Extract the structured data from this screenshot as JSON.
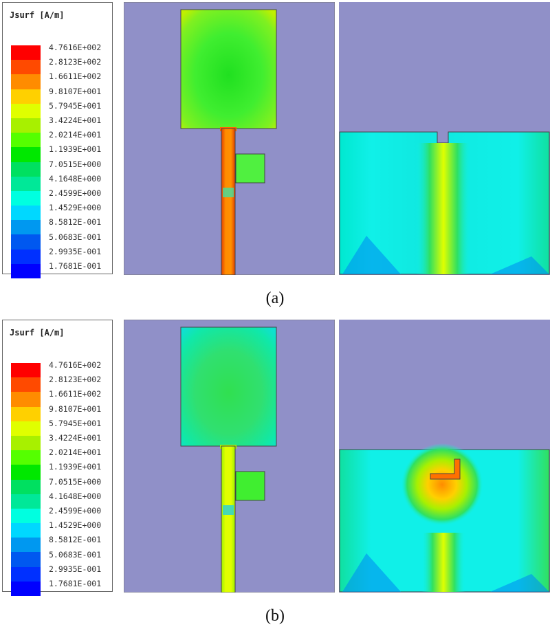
{
  "legend": {
    "title": "Jsurf [A/m]",
    "values": [
      "4.7616E+002",
      "2.8123E+002",
      "1.6611E+002",
      "9.8107E+001",
      "5.7945E+001",
      "3.4224E+001",
      "2.0214E+001",
      "1.1939E+001",
      "7.0515E+000",
      "4.1648E+000",
      "2.4599E+000",
      "1.4529E+000",
      "8.5812E-001",
      "5.0683E-001",
      "2.9935E-001",
      "1.7681E-001"
    ],
    "colors": [
      "#ff0000",
      "#ff4a00",
      "#ff8c00",
      "#ffd000",
      "#e0ff00",
      "#a8f000",
      "#55ff00",
      "#00e800",
      "#00e060",
      "#00e898",
      "#00ffe0",
      "#00d8ff",
      "#0098f0",
      "#0058f0",
      "#0030ff",
      "#0000ff"
    ]
  },
  "background_color": "#9090c8",
  "figures": [
    {
      "caption": "(a)"
    },
    {
      "caption": "(b)"
    }
  ]
}
